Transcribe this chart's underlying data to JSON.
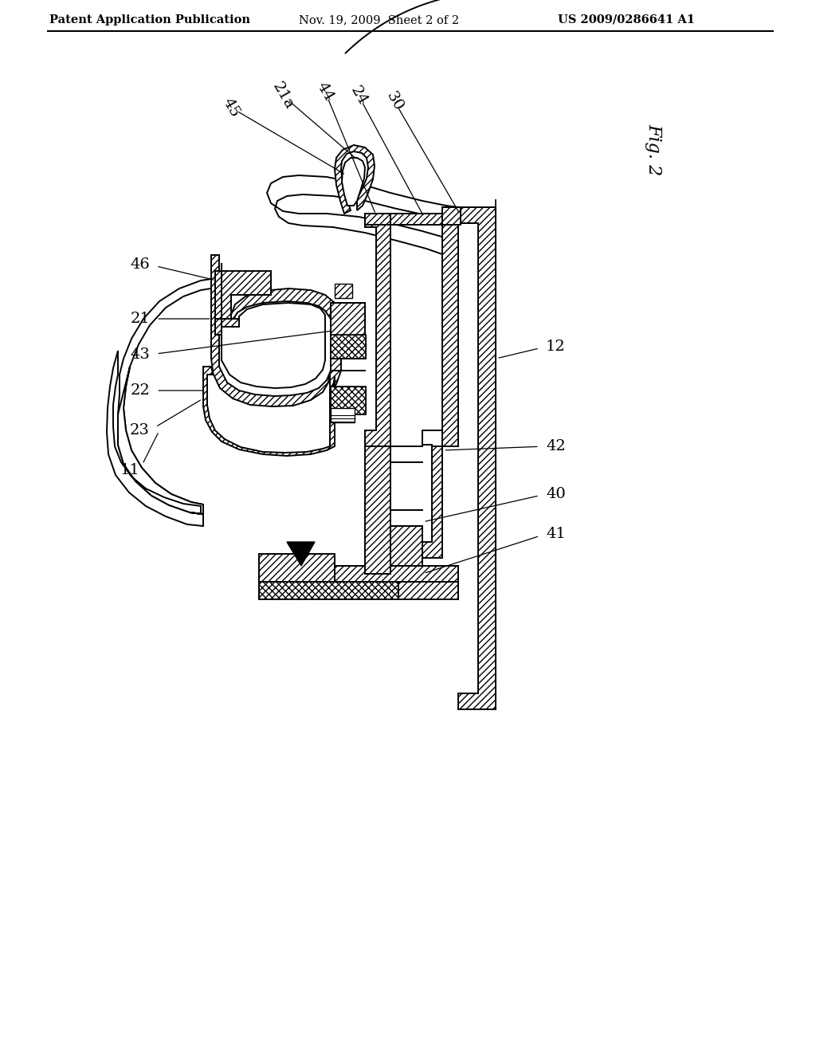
{
  "bg_color": "#ffffff",
  "header_left": "Patent Application Publication",
  "header_mid": "Nov. 19, 2009  Sheet 2 of 2",
  "header_right": "US 2009/0286641 A1",
  "fig_label": "Fig. 2",
  "line_color": "#000000",
  "header_fontsize": 10.5,
  "label_fontsize": 14,
  "fig_label_fontsize": 16
}
